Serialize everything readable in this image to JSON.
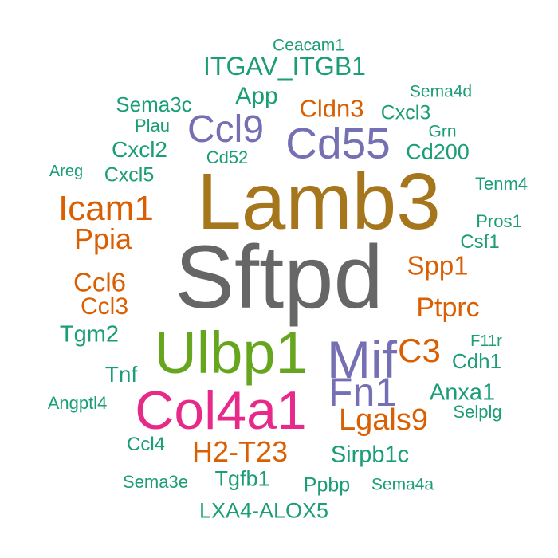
{
  "colors": {
    "teal": "#1b9e77",
    "orange": "#d95f02",
    "purple": "#7570b3",
    "green": "#66a61e",
    "gold": "#a6761d",
    "grey": "#666666",
    "magenta": "#e7298a"
  },
  "words": [
    {
      "text": "Sftpd",
      "color": "grey",
      "weight": 140
    },
    {
      "text": "Lamb3",
      "color": "gold",
      "weight": 100
    },
    {
      "text": "Col4a1",
      "color": "magenta",
      "weight": 68
    },
    {
      "text": "Ulbp1",
      "color": "green",
      "weight": 74
    },
    {
      "text": "Mif",
      "color": "purple",
      "weight": 66
    },
    {
      "text": "Cd55",
      "color": "purple",
      "weight": 55
    },
    {
      "text": "Fn1",
      "color": "purple",
      "weight": 50
    },
    {
      "text": "Ccl9",
      "color": "purple",
      "weight": 48
    },
    {
      "text": "Icam1",
      "color": "orange",
      "weight": 44
    },
    {
      "text": "Lgals9",
      "color": "orange",
      "weight": 38
    },
    {
      "text": "C3",
      "color": "orange",
      "weight": 42
    },
    {
      "text": "H2-T23",
      "color": "orange",
      "weight": 36
    },
    {
      "text": "Ppia",
      "color": "orange",
      "weight": 36
    },
    {
      "text": "Ptprc",
      "color": "orange",
      "weight": 34
    },
    {
      "text": "Ccl6",
      "color": "orange",
      "weight": 33
    },
    {
      "text": "Spp1",
      "color": "orange",
      "weight": 33
    },
    {
      "text": "Cldn3",
      "color": "orange",
      "weight": 31
    },
    {
      "text": "Ccl3",
      "color": "orange",
      "weight": 30
    },
    {
      "text": "ITGAV_ITGB1",
      "color": "teal",
      "weight": 32
    },
    {
      "text": "App",
      "color": "teal",
      "weight": 30
    },
    {
      "text": "Sirpb1c",
      "color": "teal",
      "weight": 29
    },
    {
      "text": "Tgm2",
      "color": "teal",
      "weight": 29
    },
    {
      "text": "Anxa1",
      "color": "teal",
      "weight": 29
    },
    {
      "text": "Cxcl2",
      "color": "teal",
      "weight": 28
    },
    {
      "text": "Tnf",
      "color": "teal",
      "weight": 28
    },
    {
      "text": "LXA4-ALOX5",
      "color": "teal",
      "weight": 27
    },
    {
      "text": "Cd200",
      "color": "teal",
      "weight": 27
    },
    {
      "text": "Tgfb1",
      "color": "teal",
      "weight": 27
    },
    {
      "text": "Cdh1",
      "color": "teal",
      "weight": 26
    },
    {
      "text": "Sema3c",
      "color": "teal",
      "weight": 26
    },
    {
      "text": "Cxcl3",
      "color": "teal",
      "weight": 25
    },
    {
      "text": "Cxcl5",
      "color": "teal",
      "weight": 25
    },
    {
      "text": "Ppbp",
      "color": "teal",
      "weight": 25
    },
    {
      "text": "Csf1",
      "color": "teal",
      "weight": 24
    },
    {
      "text": "Ccl4",
      "color": "teal",
      "weight": 24
    },
    {
      "text": "Sema3e",
      "color": "teal",
      "weight": 22
    },
    {
      "text": "Angptl4",
      "color": "teal",
      "weight": 22
    },
    {
      "text": "Plau",
      "color": "teal",
      "weight": 22
    },
    {
      "text": "Cd52",
      "color": "teal",
      "weight": 22
    },
    {
      "text": "Tenm4",
      "color": "teal",
      "weight": 22
    },
    {
      "text": "Pros1",
      "color": "teal",
      "weight": 22
    },
    {
      "text": "Selplg",
      "color": "teal",
      "weight": 22
    },
    {
      "text": "Sema4a",
      "color": "teal",
      "weight": 21
    },
    {
      "text": "Sema4d",
      "color": "teal",
      "weight": 21
    },
    {
      "text": "Ceacam1",
      "color": "teal",
      "weight": 21
    },
    {
      "text": "Grn",
      "color": "teal",
      "weight": 21
    },
    {
      "text": "Areg",
      "color": "teal",
      "weight": 20
    },
    {
      "text": "F11r",
      "color": "teal",
      "weight": 20
    }
  ]
}
